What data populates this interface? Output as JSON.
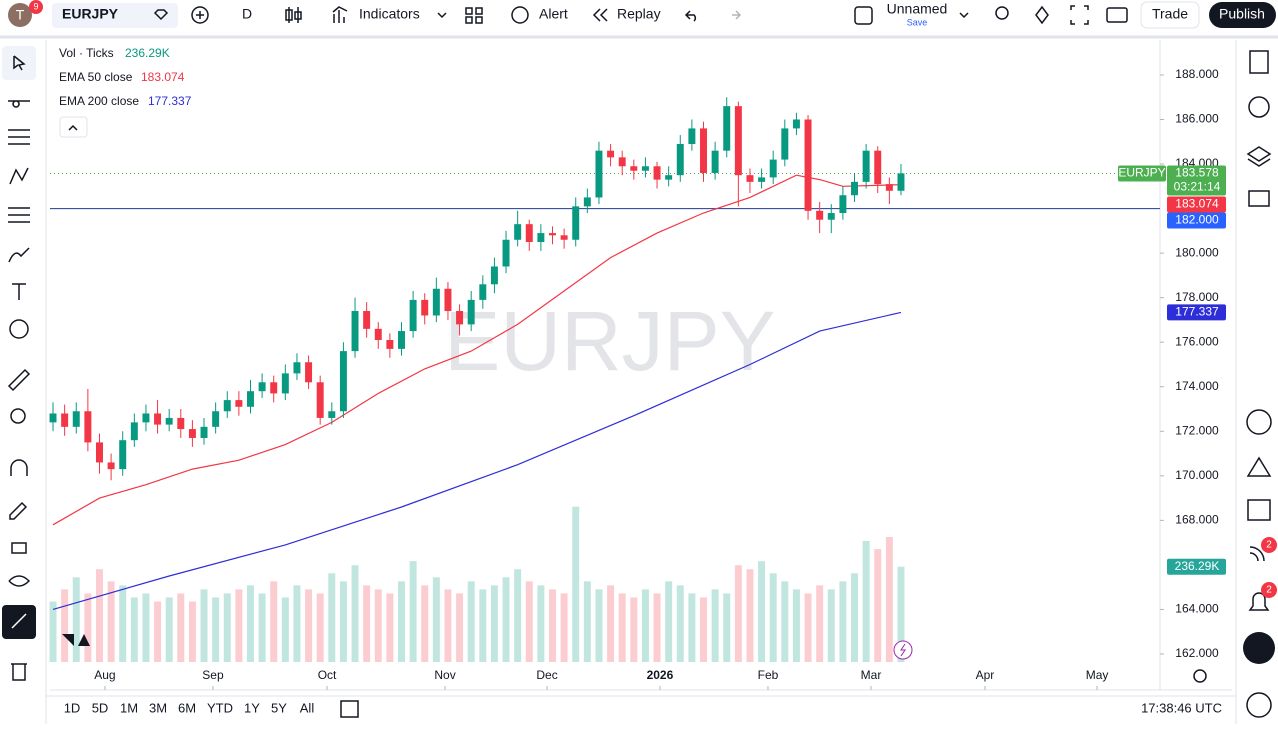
{
  "toolbar": {
    "avatar": "T",
    "avatar_badge": "9",
    "symbol": "EURJPY",
    "interval": "D",
    "indicators": "Indicators",
    "alert": "Alert",
    "replay": "Replay",
    "layout_name": "Unnamed",
    "save": "Save",
    "trade": "Trade",
    "publish": "Publish"
  },
  "right_sidebar": {
    "badges": [
      "2",
      "2"
    ]
  },
  "bottom_bar": {
    "ranges": [
      "1D",
      "5D",
      "1M",
      "3M",
      "6M",
      "YTD",
      "1Y",
      "5Y",
      "All"
    ],
    "clock": "17:38:46 UTC"
  },
  "chart_data": {
    "type": "candlestick",
    "watermark": "EURJPY",
    "up_color": "#089981",
    "down_color": "#f23645",
    "categories": [
      null,
      null,
      null,
      null,
      null,
      null,
      null,
      null,
      null,
      null,
      null,
      null,
      null,
      null,
      null,
      null,
      null,
      null,
      null,
      null,
      null,
      null,
      null,
      null,
      null,
      null,
      null,
      null,
      null,
      null,
      null,
      null,
      null,
      null,
      null,
      null,
      null,
      null,
      null,
      null,
      null,
      null,
      null,
      null,
      null,
      null,
      null,
      null,
      null,
      null,
      null,
      null,
      null,
      null,
      null,
      null,
      null,
      null,
      null,
      null,
      null,
      null,
      null,
      null,
      null,
      null,
      null,
      null,
      null,
      null,
      null,
      null,
      null,
      null
    ],
    "open": [
      172.4,
      172.8,
      172.2,
      172.9,
      171.5,
      170.6,
      170.3,
      171.6,
      172.4,
      172.8,
      172.3,
      172.6,
      172.1,
      171.7,
      172.2,
      172.9,
      173.4,
      173.1,
      173.8,
      174.2,
      173.7,
      174.6,
      175.1,
      174.2,
      172.6,
      172.9,
      175.6,
      177.4,
      176.6,
      176.1,
      175.7,
      176.5,
      177.9,
      177.2,
      178.4,
      177.4,
      176.8,
      177.9,
      178.6,
      179.4,
      180.6,
      181.3,
      180.5,
      180.9,
      180.8,
      180.6,
      182.1,
      182.5,
      184.6,
      184.3,
      183.9,
      183.7,
      183.9,
      183.3,
      183.5,
      184.9,
      185.6,
      183.6,
      184.6,
      186.6,
      183.5,
      183.2,
      183.4,
      184.2,
      185.6,
      186.0,
      181.9,
      181.5,
      181.8,
      182.6,
      183.2,
      184.6,
      183.1,
      182.8
    ],
    "high": [
      173.3,
      173.2,
      173.3,
      173.9,
      171.9,
      171.0,
      172.0,
      172.8,
      173.2,
      173.4,
      173.0,
      173.0,
      172.5,
      172.6,
      173.3,
      173.8,
      173.8,
      174.3,
      174.6,
      174.5,
      175.0,
      175.5,
      175.4,
      174.5,
      173.3,
      176.0,
      178.0,
      177.8,
      176.9,
      176.4,
      176.9,
      178.3,
      178.2,
      178.9,
      178.7,
      177.7,
      178.3,
      179.0,
      179.8,
      181.0,
      181.9,
      181.5,
      181.3,
      181.2,
      181.1,
      182.5,
      182.9,
      185.0,
      184.9,
      184.6,
      184.2,
      184.3,
      184.1,
      183.9,
      185.3,
      186.0,
      185.9,
      185.0,
      187.0,
      186.8,
      183.8,
      183.8,
      184.6,
      186.0,
      186.3,
      186.2,
      182.3,
      182.2,
      183.0,
      183.6,
      184.9,
      184.8,
      183.4,
      184.0
    ],
    "low": [
      172.0,
      171.8,
      171.9,
      171.1,
      170.1,
      169.8,
      170.0,
      171.3,
      172.0,
      171.9,
      172.0,
      171.7,
      171.3,
      171.4,
      171.9,
      172.6,
      172.7,
      172.8,
      173.5,
      173.3,
      173.4,
      174.3,
      173.9,
      172.3,
      172.3,
      172.6,
      175.3,
      176.2,
      175.7,
      175.3,
      175.4,
      176.2,
      176.8,
      176.9,
      177.0,
      176.3,
      176.5,
      177.5,
      178.2,
      179.1,
      180.3,
      180.1,
      180.1,
      180.4,
      180.2,
      180.3,
      181.8,
      182.2,
      183.9,
      183.5,
      183.3,
      183.4,
      182.9,
      183.0,
      183.2,
      184.6,
      183.2,
      183.3,
      184.3,
      182.1,
      182.7,
      182.9,
      183.1,
      183.9,
      185.3,
      181.5,
      180.9,
      180.9,
      181.5,
      182.3,
      182.9,
      182.7,
      182.2,
      182.6
    ],
    "close": [
      172.8,
      172.2,
      172.9,
      171.5,
      170.6,
      170.3,
      171.6,
      172.4,
      172.8,
      172.3,
      172.6,
      172.1,
      171.7,
      172.2,
      172.9,
      173.4,
      173.1,
      173.8,
      174.2,
      173.7,
      174.6,
      175.1,
      174.2,
      172.6,
      172.9,
      175.6,
      177.4,
      176.6,
      176.1,
      175.7,
      176.5,
      177.9,
      177.2,
      178.4,
      177.4,
      176.8,
      177.9,
      178.6,
      179.4,
      180.6,
      181.3,
      180.5,
      180.9,
      180.8,
      180.6,
      182.1,
      182.5,
      184.6,
      184.3,
      183.9,
      183.7,
      183.9,
      183.3,
      183.5,
      184.9,
      185.6,
      183.6,
      184.6,
      186.6,
      183.5,
      183.2,
      183.4,
      184.2,
      185.6,
      186.0,
      181.9,
      181.5,
      181.8,
      182.6,
      183.2,
      184.6,
      183.1,
      182.8,
      183.578
    ],
    "volume": {
      "name": "Vol · Ticks",
      "values": [
        150,
        180,
        210,
        170,
        230,
        200,
        190,
        160,
        170,
        150,
        160,
        170,
        150,
        180,
        160,
        170,
        180,
        190,
        170,
        200,
        160,
        190,
        180,
        170,
        220,
        200,
        240,
        190,
        180,
        170,
        200,
        250,
        190,
        210,
        180,
        170,
        200,
        180,
        190,
        210,
        230,
        200,
        190,
        180,
        170,
        385,
        200,
        180,
        190,
        170,
        160,
        180,
        170,
        200,
        190,
        170,
        160,
        180,
        170,
        240,
        230,
        250,
        220,
        200,
        180,
        170,
        190,
        180,
        200,
        220,
        300,
        280,
        310,
        236.29
      ],
      "last_value_label": "236.29K",
      "ylim": [
        0,
        600
      ]
    },
    "emas": [
      {
        "name": "EMA 50 close",
        "color": "#f23645",
        "last": 183.074,
        "x": [
          0,
          4,
          8,
          12,
          16,
          20,
          24,
          28,
          32,
          36,
          40,
          44,
          48,
          52,
          56,
          60,
          64,
          66,
          68,
          73
        ],
        "values": [
          167.8,
          169.0,
          169.6,
          170.3,
          170.7,
          171.4,
          172.4,
          173.7,
          174.8,
          175.6,
          176.8,
          178.3,
          179.8,
          180.9,
          181.8,
          182.5,
          183.5,
          183.3,
          183.0,
          183.074
        ]
      },
      {
        "name": "EMA 200 close",
        "color": "#2e2ed8",
        "last": 177.337,
        "x": [
          0,
          10,
          20,
          30,
          40,
          50,
          60,
          66,
          73
        ],
        "values": [
          164.0,
          165.5,
          166.9,
          168.6,
          170.5,
          172.7,
          175.0,
          176.5,
          177.337
        ]
      }
    ],
    "horizontal_line": {
      "value": 182,
      "label": "182.000",
      "color": "#1f3a93",
      "tag_color": "#2962ff"
    },
    "last_price": {
      "symbol": "EURJPY",
      "value": 183.578,
      "countdown": "03:21:14",
      "color": "#4caf50"
    },
    "xlim": [
      -0.26,
      95.3
    ],
    "xticks": [
      {
        "value": 4.47,
        "label": "Aug"
      },
      {
        "value": 13.77,
        "label": "Sep"
      },
      {
        "value": 23.59,
        "label": "Oct"
      },
      {
        "value": 33.75,
        "label": "Nov"
      },
      {
        "value": 42.53,
        "label": "Dec"
      },
      {
        "value": 52.25,
        "label": "2026"
      },
      {
        "value": 61.55,
        "label": "Feb"
      },
      {
        "value": 70.42,
        "label": "Mar"
      },
      {
        "value": 80.23,
        "label": "Apr"
      },
      {
        "value": 89.88,
        "label": "May"
      }
    ],
    "ylim": [
      161.64,
      189.57
    ],
    "yticks": [
      {
        "value": 162,
        "label": "162.000"
      },
      {
        "value": 164,
        "label": "164.000"
      },
      {
        "value": 168,
        "label": "168.000"
      },
      {
        "value": 170,
        "label": "170.000"
      },
      {
        "value": 172,
        "label": "172.000"
      },
      {
        "value": 174,
        "label": "174.000"
      },
      {
        "value": 176,
        "label": "176.000"
      },
      {
        "value": 178,
        "label": "178.000"
      },
      {
        "value": 180,
        "label": "180.000"
      },
      {
        "value": 184,
        "label": "184.000"
      },
      {
        "value": 186,
        "label": "186.000"
      },
      {
        "value": 188,
        "label": "188.000"
      }
    ],
    "grid": false
  }
}
